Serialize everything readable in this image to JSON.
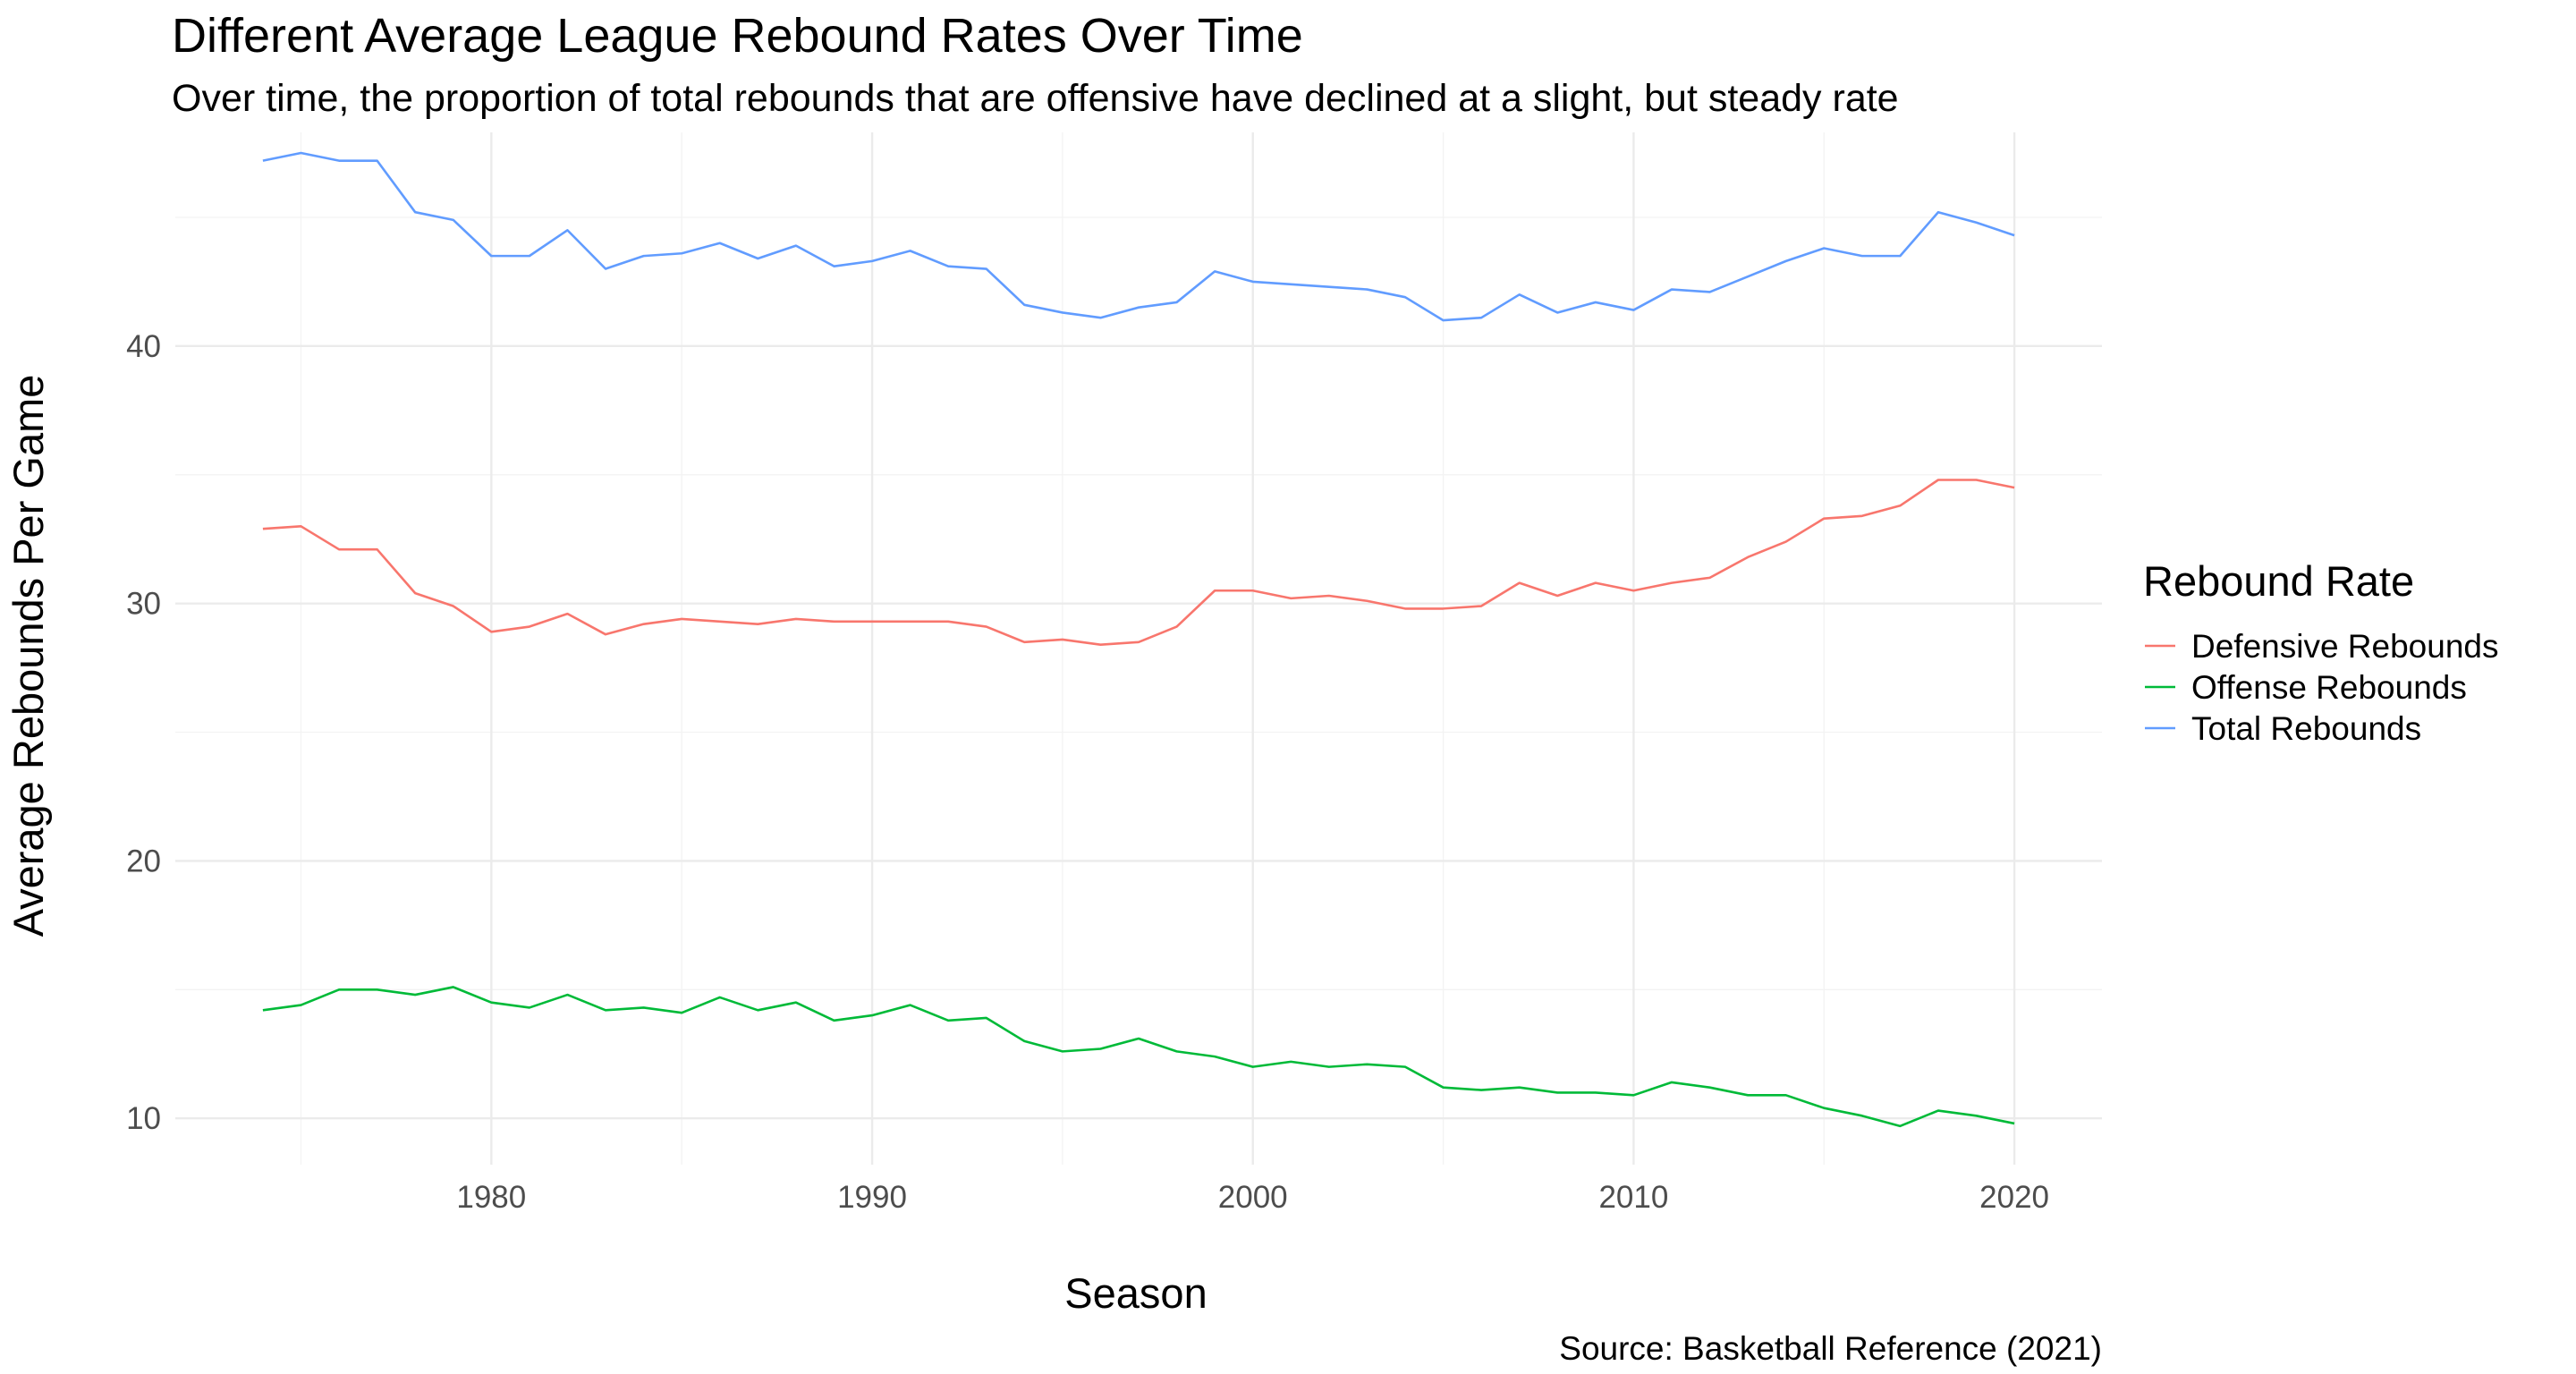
{
  "colors": {
    "defensive": "#F8766D",
    "offense": "#00BA38",
    "total": "#619CFF"
  },
  "chart_data": {
    "type": "line",
    "title": "Different Average League Rebound Rates Over Time",
    "subtitle": "Over time, the proportion of total rebounds that are offensive have declined at a slight, but steady rate",
    "xlabel": "Season",
    "ylabel": "Average Rebounds Per Game",
    "caption": "Source: Basketball Reference (2021)",
    "xlim": [
      1974,
      2020
    ],
    "ylim": [
      8.2,
      48.3
    ],
    "x_ticks": [
      1980,
      1990,
      2000,
      2010,
      2020
    ],
    "y_ticks": [
      10,
      20,
      30,
      40
    ],
    "grid": true,
    "legend": {
      "title": "Rebound Rate",
      "position": "right"
    },
    "x": [
      1974,
      1975,
      1976,
      1977,
      1978,
      1979,
      1980,
      1981,
      1982,
      1983,
      1984,
      1985,
      1986,
      1987,
      1988,
      1989,
      1990,
      1991,
      1992,
      1993,
      1994,
      1995,
      1996,
      1997,
      1998,
      1999,
      2000,
      2001,
      2002,
      2003,
      2004,
      2005,
      2006,
      2007,
      2008,
      2009,
      2010,
      2011,
      2012,
      2013,
      2014,
      2015,
      2016,
      2017,
      2018,
      2019,
      2020
    ],
    "series": [
      {
        "name": "Defensive Rebounds",
        "color_key": "defensive",
        "values": [
          32.9,
          33.0,
          32.1,
          32.1,
          30.4,
          29.9,
          28.9,
          29.1,
          29.6,
          28.8,
          29.2,
          29.4,
          29.3,
          29.2,
          29.4,
          29.3,
          29.3,
          29.3,
          29.3,
          29.1,
          28.5,
          28.6,
          28.4,
          28.5,
          29.1,
          30.5,
          30.5,
          30.2,
          30.3,
          30.1,
          29.8,
          29.8,
          29.9,
          30.8,
          30.3,
          30.8,
          30.5,
          30.8,
          31.0,
          31.8,
          32.4,
          33.3,
          33.4,
          33.8,
          34.8,
          34.8,
          34.5
        ]
      },
      {
        "name": "Offense Rebounds",
        "color_key": "offense",
        "values": [
          14.2,
          14.4,
          15.0,
          15.0,
          14.8,
          15.1,
          14.5,
          14.3,
          14.8,
          14.2,
          14.3,
          14.1,
          14.7,
          14.2,
          14.5,
          13.8,
          14.0,
          14.4,
          13.8,
          13.9,
          13.0,
          12.6,
          12.7,
          13.1,
          12.6,
          12.4,
          12.0,
          12.2,
          12.0,
          12.1,
          12.0,
          11.2,
          11.1,
          11.2,
          11.0,
          11.0,
          10.9,
          11.4,
          11.2,
          10.9,
          10.9,
          10.4,
          10.1,
          9.7,
          10.3,
          10.1,
          9.8
        ]
      },
      {
        "name": "Total Rebounds",
        "color_key": "total",
        "values": [
          47.2,
          47.5,
          47.2,
          47.2,
          45.2,
          44.9,
          43.5,
          43.5,
          44.5,
          43.0,
          43.5,
          43.6,
          44.0,
          43.4,
          43.9,
          43.1,
          43.3,
          43.7,
          43.1,
          43.0,
          41.6,
          41.3,
          41.1,
          41.5,
          41.7,
          42.9,
          42.5,
          42.4,
          42.3,
          42.2,
          41.9,
          41.0,
          41.1,
          42.0,
          41.3,
          41.7,
          41.4,
          42.2,
          42.1,
          42.7,
          43.3,
          43.8,
          43.5,
          43.5,
          45.2,
          44.8,
          44.3
        ]
      }
    ]
  }
}
